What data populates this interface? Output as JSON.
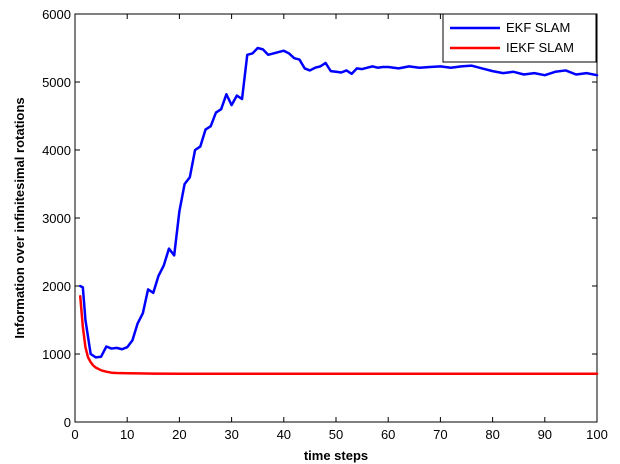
{
  "chart_data": {
    "type": "line",
    "title": "",
    "xlabel": "time steps",
    "ylabel": "Information over infinitesimal rotations",
    "xlim": [
      0,
      100
    ],
    "ylim": [
      0,
      6000
    ],
    "xticks": [
      0,
      10,
      20,
      30,
      40,
      50,
      60,
      70,
      80,
      90,
      100
    ],
    "yticks": [
      0,
      1000,
      2000,
      3000,
      4000,
      5000,
      6000
    ],
    "grid": false,
    "legend_position": "top-right",
    "series": [
      {
        "name": "EKF SLAM",
        "color": "#0000ff",
        "x": [
          1,
          1.5,
          2,
          3,
          4,
          5,
          6,
          7,
          8,
          9,
          10,
          11,
          12,
          13,
          14,
          15,
          16,
          17,
          18,
          19,
          20,
          21,
          22,
          23,
          24,
          25,
          26,
          27,
          28,
          29,
          30,
          31,
          32,
          33,
          34,
          35,
          36,
          37,
          38,
          39,
          40,
          41,
          42,
          43,
          44,
          45,
          46,
          47,
          48,
          49,
          50,
          51,
          52,
          53,
          54,
          55,
          56,
          57,
          58,
          59,
          60,
          62,
          64,
          66,
          68,
          70,
          72,
          74,
          76,
          78,
          80,
          82,
          84,
          86,
          88,
          90,
          92,
          94,
          96,
          98,
          100
        ],
        "values": [
          2000,
          1980,
          1500,
          1000,
          950,
          960,
          1110,
          1080,
          1090,
          1070,
          1100,
          1200,
          1450,
          1600,
          1950,
          1900,
          2150,
          2300,
          2550,
          2450,
          3100,
          3500,
          3600,
          4000,
          4050,
          4300,
          4350,
          4550,
          4600,
          4820,
          4660,
          4800,
          4750,
          5400,
          5420,
          5500,
          5480,
          5400,
          5420,
          5440,
          5460,
          5420,
          5350,
          5330,
          5200,
          5170,
          5210,
          5230,
          5280,
          5160,
          5150,
          5140,
          5170,
          5120,
          5200,
          5190,
          5210,
          5230,
          5210,
          5220,
          5220,
          5200,
          5230,
          5210,
          5220,
          5230,
          5210,
          5230,
          5240,
          5200,
          5160,
          5130,
          5150,
          5110,
          5130,
          5100,
          5150,
          5170,
          5110,
          5130,
          5100
        ]
      },
      {
        "name": "IEKF SLAM",
        "color": "#ff0000",
        "x": [
          1,
          1.5,
          2,
          2.5,
          3,
          3.5,
          4,
          5,
          6,
          7,
          8,
          9,
          10,
          12,
          15,
          20,
          30,
          40,
          50,
          60,
          70,
          80,
          90,
          100
        ],
        "values": [
          1850,
          1400,
          1100,
          950,
          880,
          830,
          800,
          760,
          740,
          725,
          720,
          718,
          716,
          715,
          712,
          710,
          710,
          710,
          710,
          710,
          710,
          710,
          710,
          710
        ]
      }
    ]
  }
}
